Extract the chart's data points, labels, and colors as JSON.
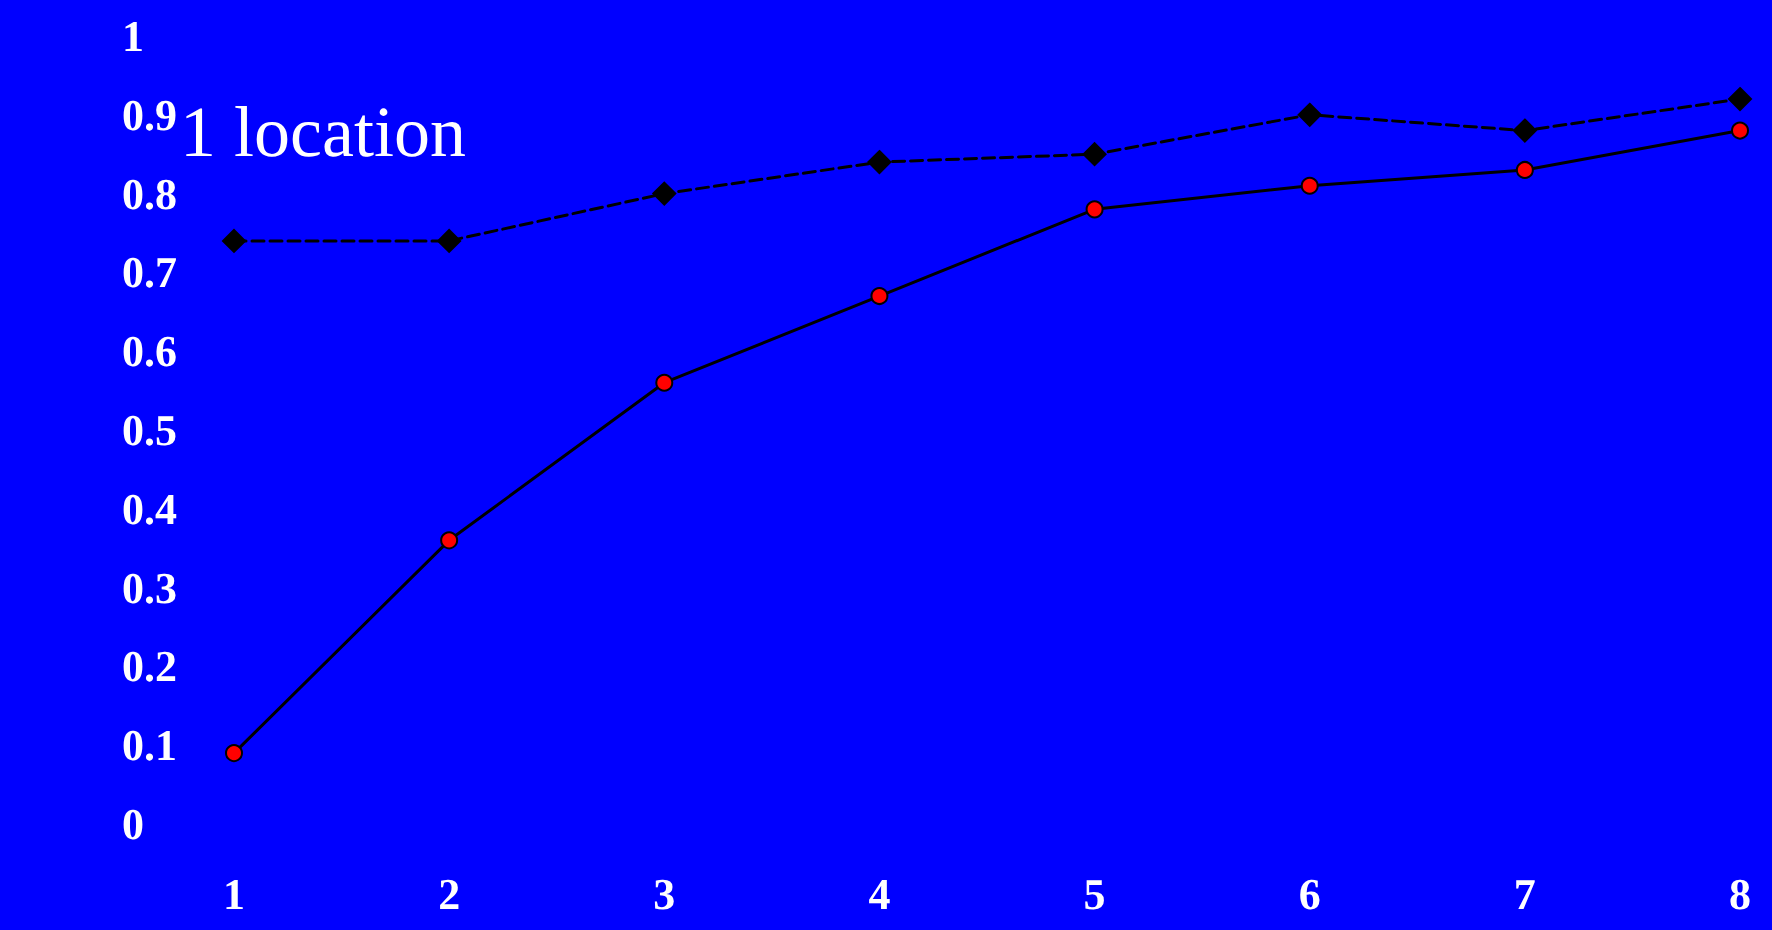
{
  "chart_data": {
    "type": "line",
    "categories": [
      "1",
      "2",
      "3",
      "4",
      "5",
      "6",
      "7",
      "8"
    ],
    "series": [
      {
        "color": "#000000",
        "marker": "diamond",
        "line_style": "dashed",
        "values": [
          0.74,
          0.74,
          0.8,
          0.84,
          0.85,
          0.9,
          0.88,
          0.92
        ]
      },
      {
        "color": "#ff0000",
        "marker": "circle",
        "line_style": "solid",
        "values": [
          0.09,
          0.36,
          0.56,
          0.67,
          0.78,
          0.81,
          0.83,
          0.88
        ]
      }
    ],
    "ylim": [
      0,
      1
    ],
    "yticks": [
      0,
      0.1,
      0.2,
      0.3,
      0.4,
      0.5,
      0.6,
      0.7,
      0.8,
      0.9,
      1
    ],
    "grid": false,
    "annotations": [
      "1 location"
    ]
  }
}
